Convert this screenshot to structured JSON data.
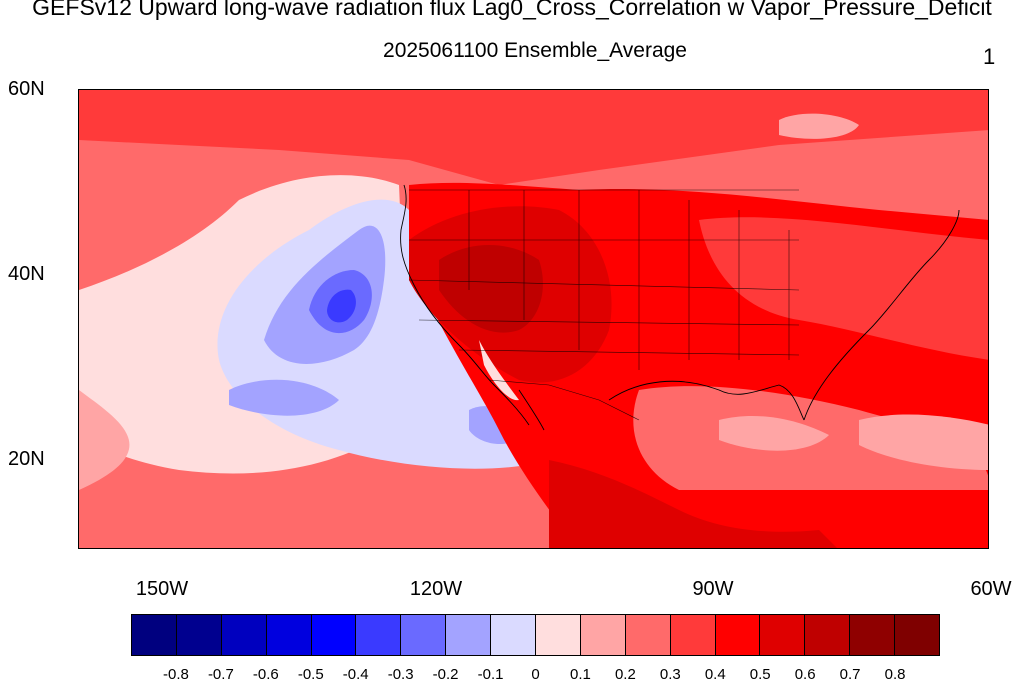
{
  "title": "GEFSv12 Upward long-wave radiation flux Lag0_Cross_Correlation w Vapor_Pressure_Deficit",
  "subtitle": "2025061100 Ensemble_Average",
  "panel_number": "1",
  "axes": {
    "lat_ticks": [
      {
        "label": "60N",
        "value": 60
      },
      {
        "label": "40N",
        "value": 40
      },
      {
        "label": "20N",
        "value": 20
      }
    ],
    "lon_ticks": [
      {
        "label": "150W",
        "value": -150
      },
      {
        "label": "120W",
        "value": -120
      },
      {
        "label": "90W",
        "value": -90
      },
      {
        "label": "60W",
        "value": -60
      }
    ]
  },
  "colorbar": {
    "colors": [
      "#00007f",
      "#00008f",
      "#0000bf",
      "#0000df",
      "#0000ff",
      "#3a3aff",
      "#6a6aff",
      "#a3a3ff",
      "#dadaff",
      "#ffdede",
      "#ffa5a5",
      "#ff6a6a",
      "#ff3a3a",
      "#ff0000",
      "#df0000",
      "#bf0000",
      "#8f0000",
      "#7f0000"
    ],
    "labels": [
      "-0.8",
      "-0.7",
      "-0.6",
      "-0.5",
      "-0.4",
      "-0.3",
      "-0.2",
      "-0.1",
      "0",
      "0.1",
      "0.2",
      "0.3",
      "0.4",
      "0.5",
      "0.6",
      "0.7",
      "0.8"
    ]
  }
}
